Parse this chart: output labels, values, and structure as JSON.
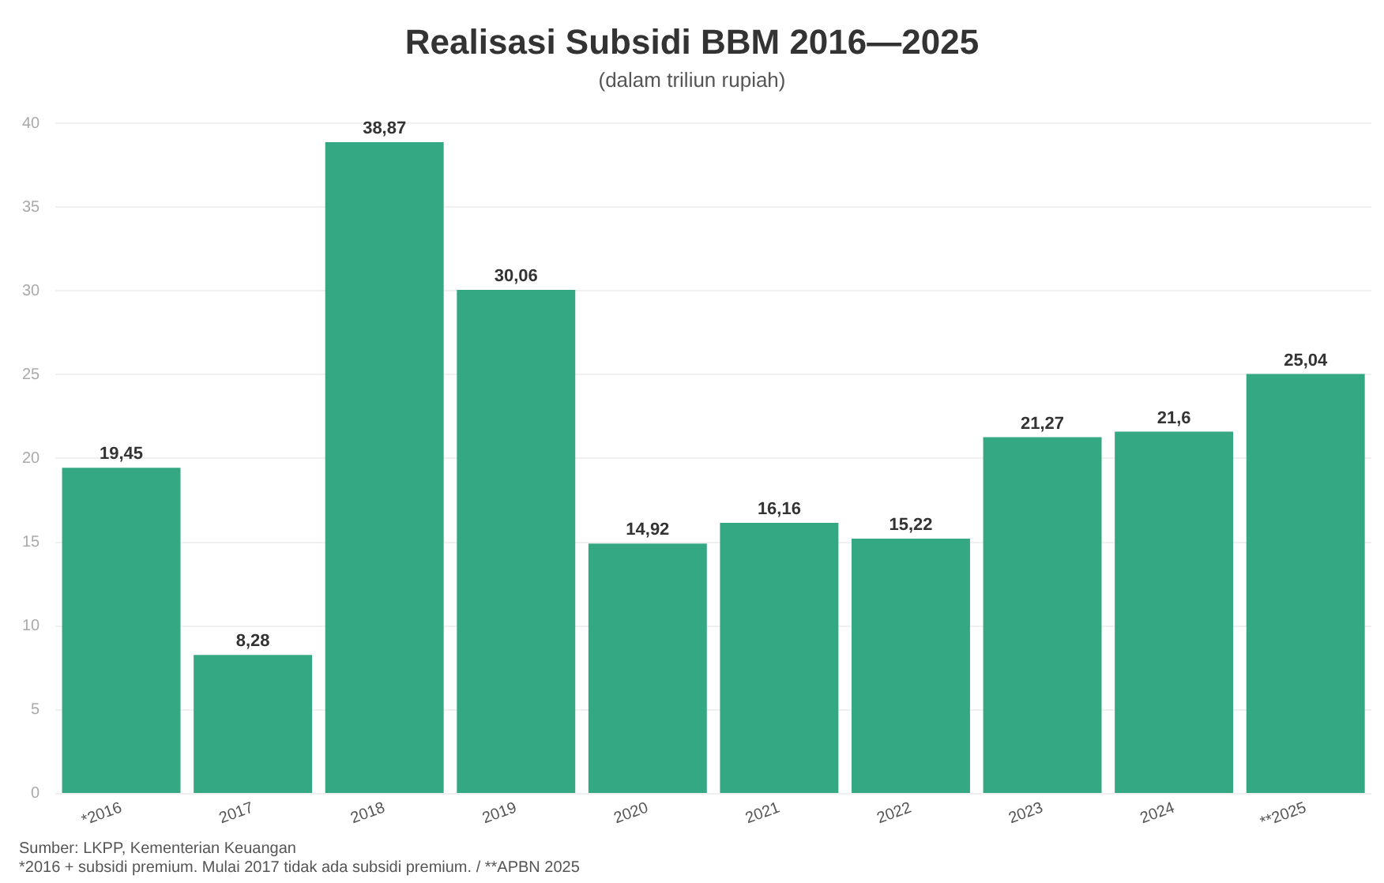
{
  "chart_data": {
    "type": "bar",
    "title": "Realisasi Subsidi BBM 2016—2025",
    "subtitle": "(dalam triliun rupiah)",
    "categories": [
      "*2016",
      "2017",
      "2018",
      "2019",
      "2020",
      "2021",
      "2022",
      "2023",
      "2024",
      "**2025"
    ],
    "values": [
      19.45,
      8.28,
      38.87,
      30.06,
      14.92,
      16.16,
      15.22,
      21.27,
      21.6,
      25.04
    ],
    "value_labels": [
      "19,45",
      "8,28",
      "38,87",
      "30,06",
      "14,92",
      "16,16",
      "15,22",
      "21,27",
      "21,6",
      "25,04"
    ],
    "color": "#34a882",
    "ylim": [
      0,
      40
    ],
    "yticks": [
      0,
      5,
      10,
      15,
      20,
      25,
      30,
      35,
      40
    ],
    "grid": "y",
    "legend": false,
    "annotations": [
      "Sumber: LKPP, Kementerian Keuangan",
      "*2016 + subsidi premium. Mulai 2017 tidak ada subsidi premium. / **APBN 2025"
    ]
  }
}
